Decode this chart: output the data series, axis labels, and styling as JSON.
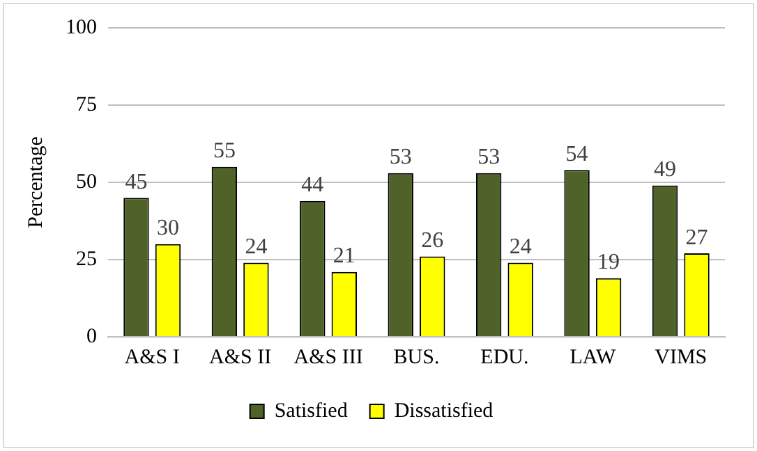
{
  "chart_data": {
    "type": "bar",
    "ylabel": "Percentage",
    "categories": [
      "A&S I",
      "A&S II",
      "A&S III",
      "BUS.",
      "EDU.",
      "LAW",
      "VIMS"
    ],
    "series": [
      {
        "name": "Satisfied",
        "color": "#4f6228",
        "values": [
          45,
          55,
          44,
          53,
          53,
          54,
          49
        ]
      },
      {
        "name": "Dissatisfied",
        "color": "#ffff00",
        "values": [
          30,
          24,
          21,
          26,
          24,
          19,
          27
        ]
      }
    ],
    "ylim": [
      0,
      100
    ],
    "yticks": [
      0,
      25,
      50,
      75,
      100
    ],
    "grid": "y",
    "legend": "bottom",
    "data_labels": true
  }
}
